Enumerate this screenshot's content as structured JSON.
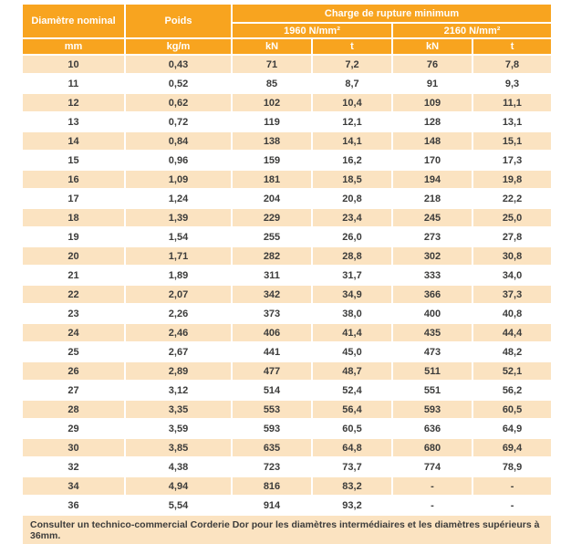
{
  "colors": {
    "header_bg": "#F8A41F",
    "row_alt_bg": "#FBE3C1",
    "row_bg": "#FFFFFF",
    "header_text": "#FFFFFF",
    "body_text": "#3C3C3B"
  },
  "table": {
    "header": {
      "col_diameter": "Diamètre nominal",
      "col_weight": "Poids",
      "col_breaking_load": "Charge de rupture minimum",
      "grade_1960": "1960 N/mm²",
      "grade_2160": "2160 N/mm²",
      "units": [
        "mm",
        "kg/m",
        "kN",
        "t",
        "kN",
        "t"
      ]
    },
    "rows": [
      [
        "10",
        "0,43",
        "71",
        "7,2",
        "76",
        "7,8"
      ],
      [
        "11",
        "0,52",
        "85",
        "8,7",
        "91",
        "9,3"
      ],
      [
        "12",
        "0,62",
        "102",
        "10,4",
        "109",
        "11,1"
      ],
      [
        "13",
        "0,72",
        "119",
        "12,1",
        "128",
        "13,1"
      ],
      [
        "14",
        "0,84",
        "138",
        "14,1",
        "148",
        "15,1"
      ],
      [
        "15",
        "0,96",
        "159",
        "16,2",
        "170",
        "17,3"
      ],
      [
        "16",
        "1,09",
        "181",
        "18,5",
        "194",
        "19,8"
      ],
      [
        "17",
        "1,24",
        "204",
        "20,8",
        "218",
        "22,2"
      ],
      [
        "18",
        "1,39",
        "229",
        "23,4",
        "245",
        "25,0"
      ],
      [
        "19",
        "1,54",
        "255",
        "26,0",
        "273",
        "27,8"
      ],
      [
        "20",
        "1,71",
        "282",
        "28,8",
        "302",
        "30,8"
      ],
      [
        "21",
        "1,89",
        "311",
        "31,7",
        "333",
        "34,0"
      ],
      [
        "22",
        "2,07",
        "342",
        "34,9",
        "366",
        "37,3"
      ],
      [
        "23",
        "2,26",
        "373",
        "38,0",
        "400",
        "40,8"
      ],
      [
        "24",
        "2,46",
        "406",
        "41,4",
        "435",
        "44,4"
      ],
      [
        "25",
        "2,67",
        "441",
        "45,0",
        "473",
        "48,2"
      ],
      [
        "26",
        "2,89",
        "477",
        "48,7",
        "511",
        "52,1"
      ],
      [
        "27",
        "3,12",
        "514",
        "52,4",
        "551",
        "56,2"
      ],
      [
        "28",
        "3,35",
        "553",
        "56,4",
        "593",
        "60,5"
      ],
      [
        "29",
        "3,59",
        "593",
        "60,5",
        "636",
        "64,9"
      ],
      [
        "30",
        "3,85",
        "635",
        "64,8",
        "680",
        "69,4"
      ],
      [
        "32",
        "4,38",
        "723",
        "73,7",
        "774",
        "78,9"
      ],
      [
        "34",
        "4,94",
        "816",
        "83,2",
        "-",
        "-"
      ],
      [
        "36",
        "5,54",
        "914",
        "93,2",
        "-",
        "-"
      ]
    ],
    "note": "Consulter un technico-commercial Corderie Dor pour les diamètres intermédiaires et les diamètres supérieurs à 36mm."
  }
}
